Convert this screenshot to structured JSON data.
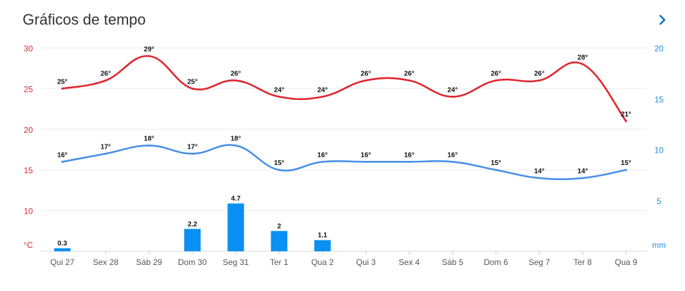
{
  "header": {
    "title": "Gráficos de tempo",
    "next_icon": "chevron-right-icon"
  },
  "chart_data": {
    "type": "line+bar",
    "title": "Gráficos de tempo",
    "categories": [
      "Qui 27",
      "Sex 28",
      "Sáb 29",
      "Dom 30",
      "Seg 31",
      "Ter 1",
      "Qua 2",
      "Qui 3",
      "Sex 4",
      "Sáb 5",
      "Dom 6",
      "Seg 7",
      "Ter 8",
      "Qua 9"
    ],
    "series": [
      {
        "name": "max",
        "type": "line",
        "axis": "left",
        "color": "#e0242c",
        "values": [
          25,
          26,
          29,
          25,
          26,
          24,
          24,
          26,
          26,
          24,
          26,
          26,
          28,
          21
        ],
        "labels": [
          "25°",
          "26°",
          "29°",
          "25°",
          "26°",
          "24°",
          "24°",
          "26°",
          "26°",
          "24°",
          "26°",
          "26°",
          "28°",
          "21°"
        ]
      },
      {
        "name": "min",
        "type": "line",
        "axis": "left",
        "color": "#4a8fe8",
        "values": [
          16,
          17,
          18,
          17,
          18,
          15,
          16,
          16,
          16,
          16,
          15,
          14,
          14,
          15
        ],
        "labels": [
          "16°",
          "17°",
          "18°",
          "17°",
          "18°",
          "15°",
          "16°",
          "16°",
          "16°",
          "16°",
          "15°",
          "14°",
          "14°",
          "15°"
        ]
      },
      {
        "name": "precipitation",
        "type": "bar",
        "axis": "right",
        "color": "#0a90f2",
        "values": [
          0.3,
          null,
          null,
          2.2,
          4.7,
          2,
          1.1,
          null,
          null,
          null,
          null,
          null,
          null,
          null
        ],
        "labels": [
          "0.3",
          "",
          "",
          "2.2",
          "4.7",
          "2",
          "1.1",
          "",
          "",
          "",
          "",
          "",
          "",
          ""
        ]
      }
    ],
    "left_axis": {
      "label": "°C",
      "ticks": [
        "30",
        "25",
        "20",
        "15",
        "10"
      ],
      "min": 5,
      "max": 30,
      "color": "#e0242c"
    },
    "right_axis": {
      "label": "mm",
      "ticks": [
        "20",
        "15",
        "10",
        "5"
      ],
      "min": 0,
      "max": 20,
      "color": "#1e8fd8"
    },
    "grid": true
  }
}
